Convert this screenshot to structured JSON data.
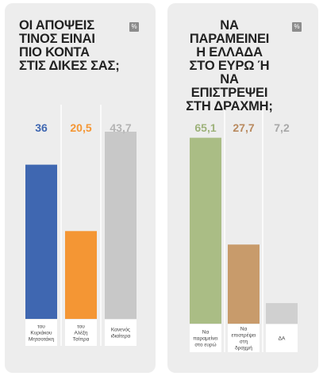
{
  "badge": "%",
  "chart_data": [
    {
      "type": "bar",
      "title": "ΟΙ ΑΠΟΨΕΙΣ ΤΙΝΟΣ ΕΙΝΑΙ ΠΙΟ ΚΟΝΤΑ ΣΤΙΣ ΔΙΚΕΣ ΣΑΣ;",
      "title_lines": [
        "ΟΙ ΑΠΟΨΕΙΣ",
        "ΤΙΝΟΣ ΕΙΝΑΙ",
        "ΠΙΟ ΚΟΝΤΑ",
        "ΣΤΙΣ ΔΙΚΕΣ ΣΑΣ;"
      ],
      "categories": [
        [
          "του",
          "Κυριάκου",
          "Μητσοτάκη"
        ],
        [
          "του",
          "Αλέξη",
          "Τσίπρα"
        ],
        [
          "Κανενός",
          "ιδιαίτερα"
        ]
      ],
      "values": [
        36,
        20.5,
        43.7
      ],
      "value_labels": [
        "36",
        "20,5",
        "43,7"
      ],
      "colors": [
        "#3f67b1",
        "#f49634",
        "#c8c8c8"
      ],
      "value_colors": [
        "#3f67b1",
        "#f49634",
        "#b4b4b4"
      ],
      "ylim": [
        0,
        50
      ],
      "unit": "%"
    },
    {
      "type": "bar",
      "title": "ΝΑ ΠΑΡΑΜΕΙΝΕΙ Η ΕΛΛΑΔΑ ΣΤΟ ΕΥΡΩ Ή ΝΑ ΕΠΙΣΤΡΕΨΕΙ ΣΤΗ ΔΡΑΧΜΗ;",
      "title_lines": [
        "ΝΑ",
        "ΠΑΡΑΜΕΙΝΕΙ",
        "Η ΕΛΛΑΔΑ",
        "ΣΤΟ ΕΥΡΩ Ή",
        "ΝΑ ΕΠΙΣΤΡΕΨΕΙ",
        "ΣΤΗ ΔΡΑΧΜΗ;"
      ],
      "categories": [
        [
          "Να",
          "παραμείνει",
          "στο ευρώ"
        ],
        [
          "Να",
          "επιστρέψει",
          "στη",
          "δραχμή"
        ],
        [
          "ΔΑ"
        ]
      ],
      "values": [
        65.1,
        27.7,
        7.2
      ],
      "value_labels": [
        "65,1",
        "27,7",
        "7,2"
      ],
      "colors": [
        "#aabd85",
        "#c89b6b",
        "#d0d0d0"
      ],
      "value_colors": [
        "#9db27a",
        "#b98a5f",
        "#a8a8a8"
      ],
      "ylim": [
        0,
        75
      ],
      "unit": "%"
    }
  ]
}
